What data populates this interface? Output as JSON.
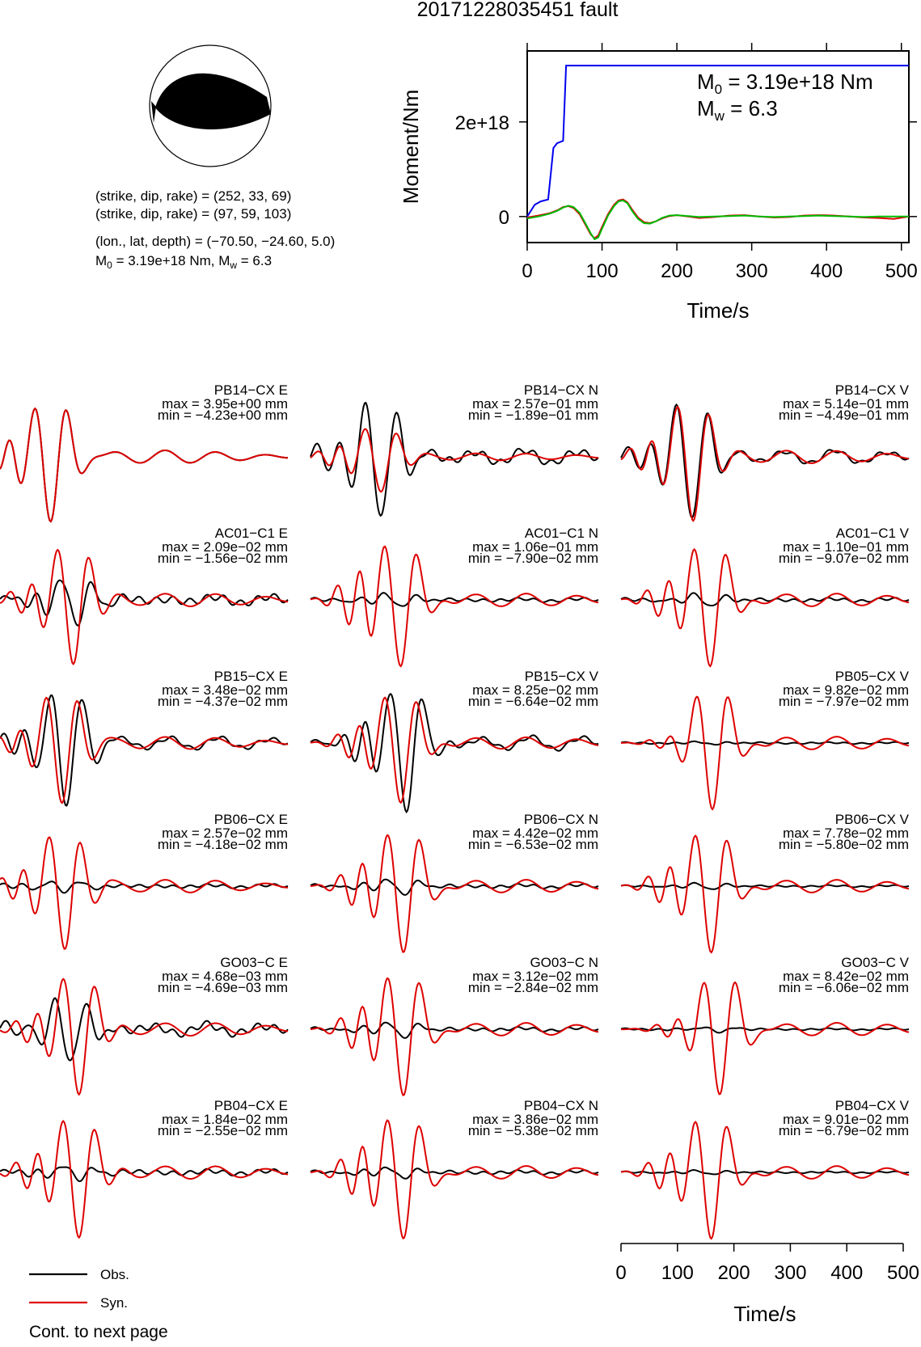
{
  "title": "20171228035451 fault",
  "mechanism": {
    "planes": [
      {
        "strike": 252,
        "dip": 33,
        "rake": 69
      },
      {
        "strike": 97,
        "dip": 59,
        "rake": 103
      }
    ],
    "lines": {
      "plane1": "(strike, dip, rake) = (252, 33, 69)",
      "plane2": "(strike, dip, rake) = (97, 59, 103)",
      "location": "(lon., lat, depth) = (−70.50, −24.60, 5.0)",
      "m0_prefix": "M",
      "m0_sub": "0",
      "m0_mid": " = 3.19e+18 Nm, M",
      "mw_sub": "w",
      "mw_end": " = 6.3"
    },
    "colors": {
      "compression": "#000000",
      "dilatation": "#ffffff"
    }
  },
  "moment_labels": {
    "m0_main": "M",
    "m0_sub": "0",
    "m0_value": " = 3.19e+18 Nm",
    "mw_main": "M",
    "mw_sub": "w",
    "mw_value": " = 6.3"
  },
  "chart_data": [
    {
      "type": "line",
      "xlabel": "Time/s",
      "ylabel": "Moment/Nm",
      "xlim": [
        0,
        510
      ],
      "ylim": [
        -5.5e+17,
        3.5e+18
      ],
      "xticks": [
        0,
        100,
        200,
        300,
        400,
        500
      ],
      "xtick_labels": [
        "0",
        "100",
        "200",
        "300",
        "400",
        "500"
      ],
      "yticks": [
        0,
        2e+18
      ],
      "ytick_labels": [
        "0",
        "2e+18"
      ],
      "series": [
        {
          "color": "#0000ee",
          "role": "cumulative moment",
          "x": [
            0,
            10,
            18,
            28,
            35,
            40,
            48,
            52,
            510
          ],
          "y": [
            0,
            2.5e+17,
            3.2e+17,
            3.6e+17,
            1.45e+18,
            1.55e+18,
            1.6e+18,
            3.19e+18,
            3.19e+18
          ]
        },
        {
          "color": "#dd0000",
          "role": "moment rate (red)",
          "x": [
            0,
            15,
            30,
            40,
            48,
            55,
            62,
            70,
            78,
            85,
            90,
            95,
            100,
            108,
            116,
            122,
            128,
            134,
            140,
            148,
            156,
            164,
            172,
            180,
            190,
            200,
            215,
            230,
            250,
            270,
            290,
            310,
            330,
            350,
            370,
            390,
            410,
            430,
            450,
            470,
            490,
            510
          ],
          "y": [
            -2e+16,
            2e+16,
            7e+16,
            1.3e+17,
            2e+17,
            2.2e+17,
            1.8e+17,
            5e+16,
            -1.8e+17,
            -3.8e+17,
            -4.6e+17,
            -4e+17,
            -2.2e+17,
            5e+16,
            2.5e+17,
            3.4e+17,
            3.6e+17,
            3e+17,
            1.5e+17,
            -2e+16,
            -1.2e+17,
            -1.4e+17,
            -1e+17,
            -4e+16,
            1e+16,
            3e+16,
            0.0,
            -3e+16,
            -1e+16,
            2e+16,
            3e+16,
            0.0,
            -2e+16,
            -1e+16,
            2e+16,
            3e+16,
            2e+16,
            0.0,
            -2e+16,
            -3e+16,
            -5e+16,
            0.0
          ]
        },
        {
          "color": "#00bb00",
          "role": "moment rate (green)",
          "x": [
            0,
            15,
            30,
            40,
            48,
            55,
            62,
            70,
            78,
            85,
            90,
            95,
            100,
            108,
            116,
            122,
            128,
            134,
            140,
            148,
            156,
            164,
            172,
            180,
            190,
            200,
            215,
            230,
            250,
            270,
            290,
            310,
            330,
            350,
            370,
            390,
            410,
            430,
            450,
            470,
            490,
            510
          ],
          "y": [
            -4e+16,
            0.0,
            6e+16,
            1.2e+17,
            1.9e+17,
            2.3e+17,
            2e+17,
            8e+16,
            -1.5e+17,
            -3.6e+17,
            -4.8e+17,
            -4.4e+17,
            -2.6e+17,
            2e+16,
            2.2e+17,
            3.2e+17,
            3.4e+17,
            2.8e+17,
            1.2e+17,
            -5e+16,
            -1.4e+17,
            -1.5e+17,
            -1e+17,
            -3e+16,
            2e+16,
            3e+16,
            1e+16,
            -1e+16,
            0.0,
            1e+16,
            2e+16,
            0.0,
            -1e+16,
            0.0,
            1e+16,
            2e+16,
            1e+16,
            0.0,
            -1e+16,
            0.0,
            0.0,
            0.0
          ]
        }
      ]
    },
    {
      "type": "line",
      "xlabel": "Time/s",
      "xlim": [
        0,
        510
      ],
      "xticks": [
        0,
        100,
        200,
        300,
        400,
        500
      ],
      "xtick_labels": [
        "0",
        "100",
        "200",
        "300",
        "400",
        "500"
      ],
      "legend": [
        {
          "label": "Obs.",
          "color": "#000000"
        },
        {
          "label": "Syn.",
          "color": "#dd0000"
        }
      ],
      "traces": [
        {
          "station": "PB14−CX E",
          "max": "max = 3.95e+00 mm",
          "min": "min = −4.23e+00 mm",
          "obs_amp": 1.0,
          "obs_shift": 0,
          "obs_noise": 0.0,
          "syn_amp": 1.0,
          "t0": 90,
          "pre": 0.25
        },
        {
          "station": "PB14−CX N",
          "max": "max = 2.57e−01 mm",
          "min": "min = −1.89e−01 mm",
          "obs_amp": 1.0,
          "obs_shift": 0,
          "obs_noise": 0.05,
          "syn_amp": 0.55,
          "t0": 125,
          "pre": 0.3
        },
        {
          "station": "PB14−CX V",
          "max": "max = 5.14e−01 mm",
          "min": "min = −4.49e−01 mm",
          "obs_amp": 1.0,
          "obs_shift": -2,
          "obs_noise": 0.03,
          "syn_amp": 1.0,
          "t0": 128,
          "pre": 0.25
        },
        {
          "station": "AC01−C1 E",
          "max": "max = 2.09e−02 mm",
          "min": "min = −1.56e−02 mm",
          "obs_amp": 0.4,
          "obs_shift": 6,
          "obs_noise": 0.05,
          "syn_amp": 1.0,
          "t0": 130,
          "pre": 0.25
        },
        {
          "station": "AC01−C1 N",
          "max": "max = 1.06e−01 mm",
          "min": "min = −7.90e−02 mm",
          "obs_amp": 0.1,
          "obs_shift": 0,
          "obs_noise": 0.02,
          "syn_amp": 1.0,
          "t0": 160,
          "pre": 0.45
        },
        {
          "station": "AC01−C1 V",
          "max": "max = 1.10e−01 mm",
          "min": "min = −9.07e−02 mm",
          "obs_amp": 0.1,
          "obs_shift": 0,
          "obs_noise": 0.02,
          "syn_amp": 1.0,
          "t0": 158,
          "pre": 0.3
        },
        {
          "station": "PB15−CX E",
          "max": "max = 3.48e−02 mm",
          "min": "min = −4.37e−02 mm",
          "obs_amp": 1.0,
          "obs_shift": 8,
          "obs_noise": 0.03,
          "syn_amp": 0.95,
          "t0": 110,
          "pre": 0.2
        },
        {
          "station": "PB15−CX V",
          "max": "max = 8.25e−02 mm",
          "min": "min = −6.64e−02 mm",
          "obs_amp": 1.0,
          "obs_shift": 10,
          "obs_noise": 0.03,
          "syn_amp": 0.9,
          "t0": 160,
          "pre": 0.3
        },
        {
          "station": "PB05−CX V",
          "max": "max = 9.82e−02 mm",
          "min": "min = −7.97e−02 mm",
          "obs_amp": 0.02,
          "obs_shift": 0,
          "obs_noise": 0.01,
          "syn_amp": 1.0,
          "t0": 162,
          "pre": 0.1
        },
        {
          "station": "PB06−CX E",
          "max": "max = 2.57e−02 mm",
          "min": "min = −4.18e−02 mm",
          "obs_amp": 0.1,
          "obs_shift": 0,
          "obs_noise": 0.02,
          "syn_amp": 1.0,
          "t0": 115,
          "pre": 0.25
        },
        {
          "station": "PB06−CX N",
          "max": "max = 4.42e−02 mm",
          "min": "min = −6.53e−02 mm",
          "obs_amp": 0.12,
          "obs_shift": 0,
          "obs_noise": 0.02,
          "syn_amp": 1.0,
          "t0": 165,
          "pre": 0.35
        },
        {
          "station": "PB06−CX V",
          "max": "max = 7.78e−02 mm",
          "min": "min = −5.80e−02 mm",
          "obs_amp": 0.05,
          "obs_shift": 0,
          "obs_noise": 0.01,
          "syn_amp": 1.0,
          "t0": 160,
          "pre": 0.3
        },
        {
          "station": "GO03−C E",
          "max": "max = 4.68e−03 mm",
          "min": "min = −4.69e−03 mm",
          "obs_amp": 0.55,
          "obs_shift": -15,
          "obs_noise": 0.05,
          "syn_amp": 1.0,
          "t0": 140,
          "pre": 0.25
        },
        {
          "station": "GO03−C N",
          "max": "max = 3.12e−02 mm",
          "min": "min = −2.84e−02 mm",
          "obs_amp": 0.12,
          "obs_shift": 0,
          "obs_noise": 0.02,
          "syn_amp": 1.0,
          "t0": 165,
          "pre": 0.35
        },
        {
          "station": "GO03−C V",
          "max": "max = 8.42e−02 mm",
          "min": "min = −6.06e−02 mm",
          "obs_amp": 0.04,
          "obs_shift": 0,
          "obs_noise": 0.01,
          "syn_amp": 1.0,
          "t0": 175,
          "pre": 0.15
        },
        {
          "station": "PB04−CX E",
          "max": "max = 1.84e−02 mm",
          "min": "min = −2.55e−02 mm",
          "obs_amp": 0.12,
          "obs_shift": 0,
          "obs_noise": 0.03,
          "syn_amp": 1.0,
          "t0": 140,
          "pre": 0.3
        },
        {
          "station": "PB04−CX N",
          "max": "max = 3.86e−02 mm",
          "min": "min = −5.38e−02 mm",
          "obs_amp": 0.08,
          "obs_shift": 0,
          "obs_noise": 0.02,
          "syn_amp": 1.0,
          "t0": 165,
          "pre": 0.4
        },
        {
          "station": "PB04−CX V",
          "max": "max = 9.01e−02 mm",
          "min": "min = −6.79e−02 mm",
          "obs_amp": 0.03,
          "obs_shift": 0,
          "obs_noise": 0.01,
          "syn_amp": 1.0,
          "t0": 160,
          "pre": 0.3
        }
      ]
    }
  ],
  "footer": "Cont. to next page"
}
